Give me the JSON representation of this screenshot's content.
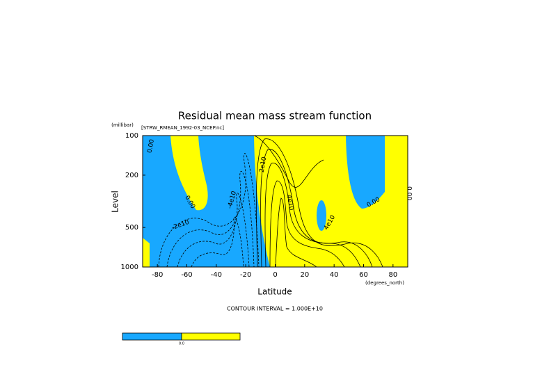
{
  "chart_data": {
    "type": "contour",
    "title": "Residual mean mass stream function",
    "subtitle": "[STRW_RMEAN_1992-03_NCEP.nc]",
    "x_label": "Latitude",
    "x_units": "(degrees_north)",
    "y_label": "Level",
    "y_units": "(millibar)",
    "xlim": [
      -90,
      90
    ],
    "xticks": [
      -80,
      -60,
      -40,
      -20,
      0,
      20,
      40,
      60,
      80
    ],
    "ylim": [
      1000,
      100
    ],
    "yticks": [
      100,
      200,
      500,
      1000
    ],
    "log_y": true,
    "fill_colors": [
      "#18a8ff",
      "#ffff00"
    ],
    "colorbar_label": "0.0",
    "contour_interval": "CONTOUR INTERVAL = 1.000E+10",
    "contour_labels": [
      "0.00",
      "0.00",
      "0.00",
      "0.00",
      "-2e10",
      "-4e10",
      "2e10",
      "4e10",
      "4e10"
    ]
  }
}
